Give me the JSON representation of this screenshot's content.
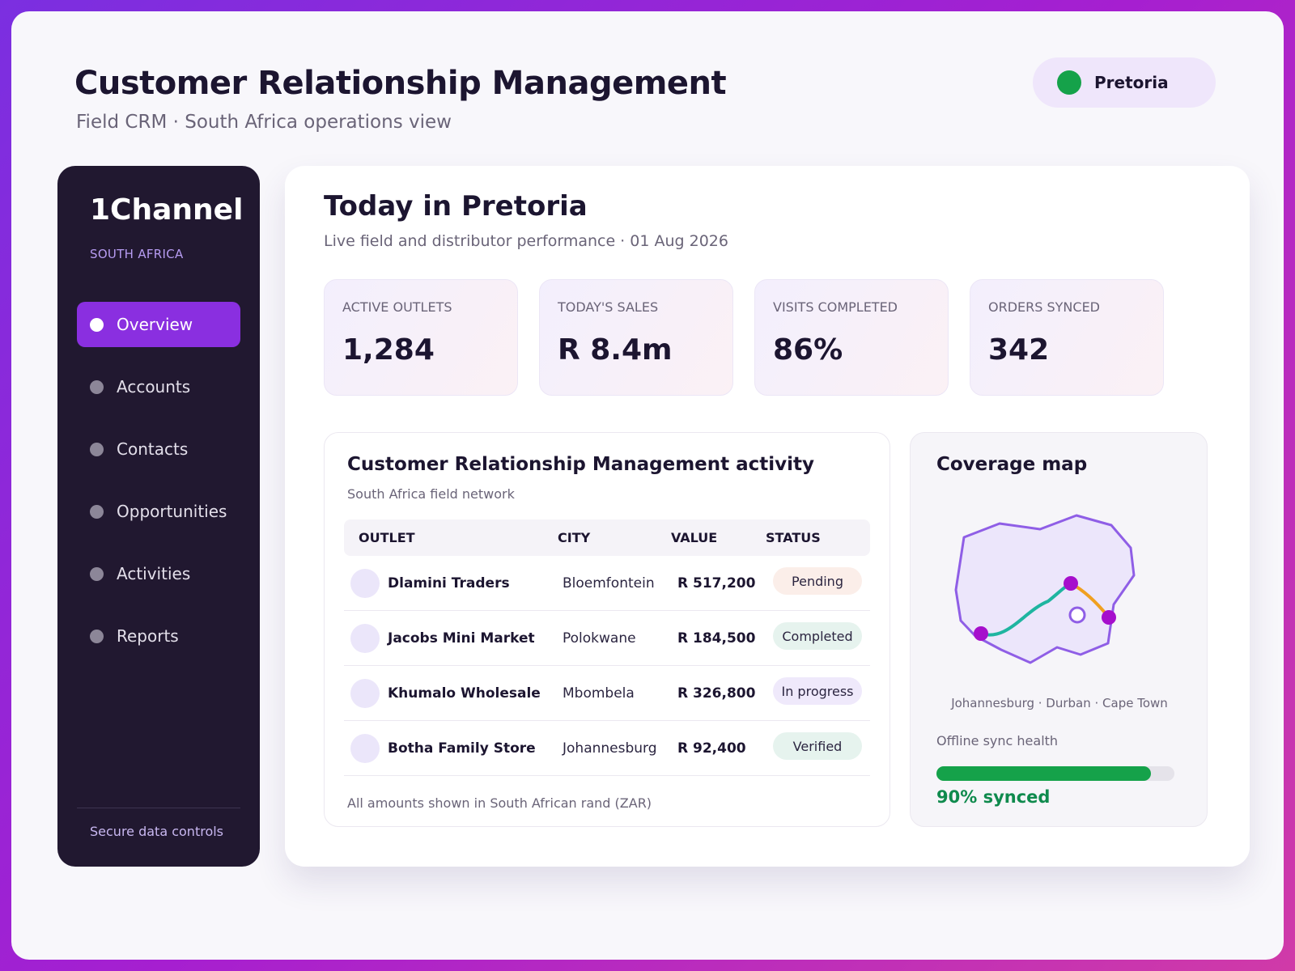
{
  "header": {
    "title": "Customer Relationship Management",
    "subtitle": "Field CRM · South Africa operations view",
    "location": "Pretoria",
    "location_status_color": "#15a24a"
  },
  "sidebar": {
    "brand": "1Channel",
    "region": "SOUTH AFRICA",
    "items": [
      {
        "label": "Overview",
        "active": true
      },
      {
        "label": "Accounts",
        "active": false
      },
      {
        "label": "Contacts",
        "active": false
      },
      {
        "label": "Opportunities",
        "active": false
      },
      {
        "label": "Activities",
        "active": false
      },
      {
        "label": "Reports",
        "active": false
      }
    ],
    "footer": "Secure data controls"
  },
  "main": {
    "title": "Today in Pretoria",
    "subtitle": "Live field and distributor performance · 01 Aug 2026",
    "kpis": [
      {
        "label": "ACTIVE OUTLETS",
        "value": "1,284"
      },
      {
        "label": "TODAY'S SALES",
        "value": "R 8.4m"
      },
      {
        "label": "VISITS COMPLETED",
        "value": "86%"
      },
      {
        "label": "ORDERS SYNCED",
        "value": "342"
      }
    ]
  },
  "activity": {
    "title": "Customer Relationship Management activity",
    "subtitle": "South Africa field network",
    "columns": [
      "OUTLET",
      "CITY",
      "VALUE",
      "STATUS"
    ],
    "rows": [
      {
        "outlet": "Dlamini Traders",
        "city": "Bloemfontein",
        "value": "R 517,200",
        "status": "Pending",
        "status_bg": "#fbeee9"
      },
      {
        "outlet": "Jacobs Mini Market",
        "city": "Polokwane",
        "value": "R 184,500",
        "status": "Completed",
        "status_bg": "#e6f3ee"
      },
      {
        "outlet": "Khumalo Wholesale",
        "city": "Mbombela",
        "value": "R 326,800",
        "status": "In progress",
        "status_bg": "#efe9fb"
      },
      {
        "outlet": "Botha Family Store",
        "city": "Johannesburg",
        "value": "R 92,400",
        "status": "Verified",
        "status_bg": "#e6f3ee"
      }
    ],
    "footnote": "All amounts shown in South African rand (ZAR)"
  },
  "coverage": {
    "title": "Coverage map",
    "cities": "Johannesburg · Durban · Cape Town",
    "sync_label": "Offline sync health",
    "sync_fraction": 0.9,
    "sync_text": "90% synced",
    "colors": {
      "outline": "#8f5ee6",
      "fill": "#ece6fb",
      "route_primary": "#1fb5a0",
      "route_secondary": "#f0a020",
      "node": "#a60fcc"
    }
  }
}
